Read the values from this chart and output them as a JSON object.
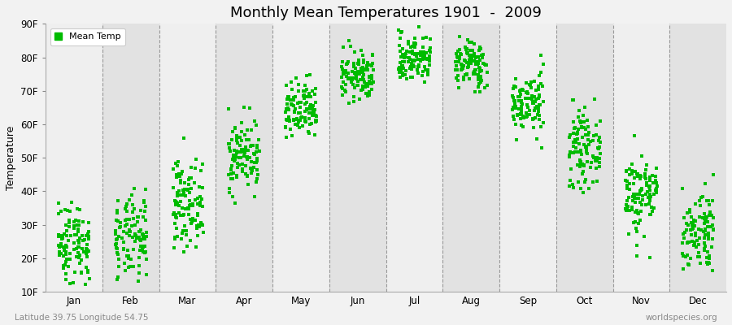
{
  "title": "Monthly Mean Temperatures 1901  -  2009",
  "ylabel": "Temperature",
  "bottom_left": "Latitude 39.75 Longitude 54.75",
  "bottom_right": "worldspecies.org",
  "legend_label": "Mean Temp",
  "dot_color": "#00BB00",
  "background_color": "#F2F2F2",
  "band_light": "#EFEFEF",
  "band_dark": "#E2E2E2",
  "ylim": [
    10,
    90
  ],
  "yticks": [
    10,
    20,
    30,
    40,
    50,
    60,
    70,
    80,
    90
  ],
  "ytick_labels": [
    "10F",
    "20F",
    "30F",
    "40F",
    "50F",
    "60F",
    "70F",
    "80F",
    "90F"
  ],
  "months": [
    "Jan",
    "Feb",
    "Mar",
    "Apr",
    "May",
    "Jun",
    "Jul",
    "Aug",
    "Sep",
    "Oct",
    "Nov",
    "Dec"
  ],
  "monthly_means_C": [
    -4.0,
    -3.5,
    2.5,
    10.5,
    17.5,
    23.5,
    26.5,
    25.5,
    19.0,
    11.5,
    4.0,
    -2.0
  ],
  "monthly_stds_C": [
    3.5,
    3.5,
    3.5,
    3.0,
    2.5,
    2.0,
    2.0,
    2.0,
    2.5,
    3.0,
    3.5,
    3.5
  ],
  "num_years": 109,
  "seed": 42,
  "marker_size": 5
}
